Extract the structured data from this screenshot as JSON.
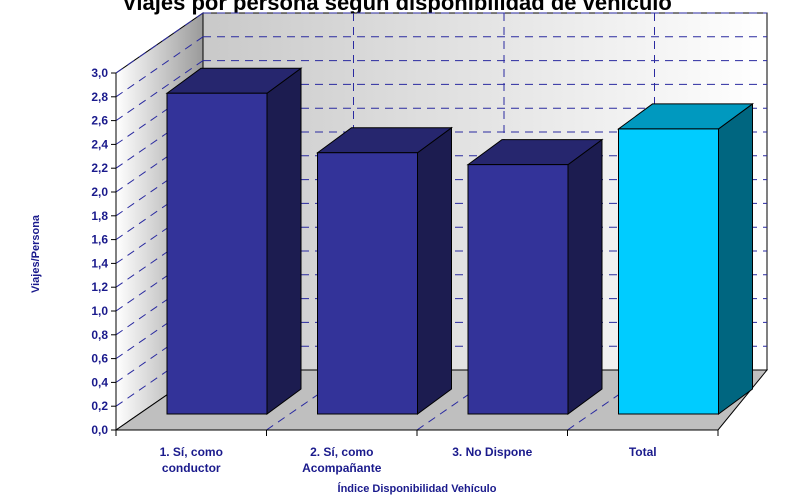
{
  "chart_data": {
    "type": "bar",
    "title": "Viajes por persona según disponibilidad de vehículo",
    "xlabel": "Índice Disponibilidad Vehículo",
    "ylabel": "Viajes/Persona",
    "categories": [
      [
        "1. Sí, como",
        "conductor"
      ],
      [
        "2. Sí, como",
        "Acompañante"
      ],
      [
        "3. No Dispone"
      ],
      [
        "Total"
      ]
    ],
    "values": [
      2.83,
      2.33,
      2.23,
      2.53
    ],
    "ylim": [
      0,
      3
    ],
    "yticks": [
      "0,0",
      "0,2",
      "0,4",
      "0,6",
      "0,8",
      "1,0",
      "1,2",
      "1,4",
      "1,6",
      "1,8",
      "2,0",
      "2,2",
      "2,4",
      "2,6",
      "2,8",
      "3,0"
    ],
    "grid": true,
    "three_d": true,
    "colors": {
      "bar_front": "#333399",
      "bar_side": "#1c1c50",
      "bar_top": "#26266e",
      "total_front": "#00ccff",
      "total_side": "#006680",
      "total_top": "#0099bf",
      "grid": "#2a2aa0",
      "floor": "#bfbfbf"
    }
  }
}
